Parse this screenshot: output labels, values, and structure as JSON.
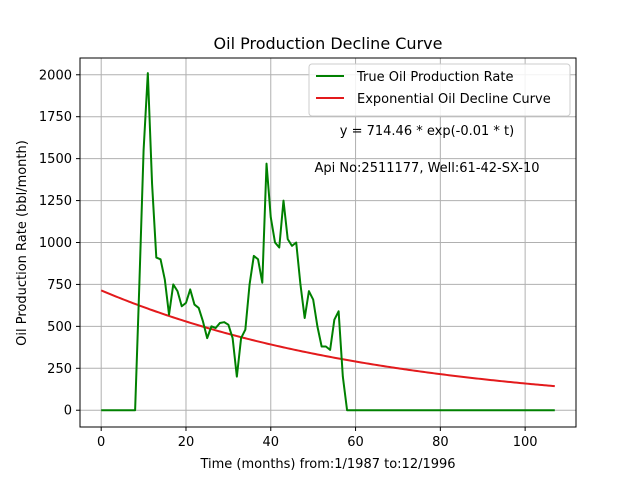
{
  "chart_data": {
    "type": "line",
    "title": "Oil Production Decline Curve",
    "xlabel": "Time (months) from:1/1987 to:12/1996",
    "ylabel": "Oil Production Rate (bbl/month)",
    "xlim": [
      -5,
      112
    ],
    "ylim": [
      -100,
      2100
    ],
    "xticks": [
      0,
      20,
      40,
      60,
      80,
      100
    ],
    "yticks": [
      0,
      250,
      500,
      750,
      1000,
      1250,
      1500,
      1750,
      2000
    ],
    "grid": true,
    "legend_position": "top-right",
    "annotations": [
      "y = 714.46 * exp(-0.01 * t)",
      "Api No:2511177, Well:61-42-SX-10"
    ],
    "series": [
      {
        "name": "True Oil Production Rate",
        "color": "#008000",
        "x": [
          0,
          1,
          2,
          3,
          4,
          5,
          6,
          7,
          8,
          9,
          10,
          11,
          12,
          13,
          14,
          15,
          16,
          17,
          18,
          19,
          20,
          21,
          22,
          23,
          24,
          25,
          26,
          27,
          28,
          29,
          30,
          31,
          32,
          33,
          34,
          35,
          36,
          37,
          38,
          39,
          40,
          41,
          42,
          43,
          44,
          45,
          46,
          47,
          48,
          49,
          50,
          51,
          52,
          53,
          54,
          55,
          56,
          57,
          58,
          59,
          60,
          61,
          62,
          63,
          64,
          65,
          66,
          67,
          68,
          69,
          70,
          71,
          72,
          73,
          74,
          75,
          76,
          77,
          78,
          79,
          80,
          81,
          82,
          83,
          84,
          85,
          86,
          87,
          88,
          89,
          90,
          91,
          92,
          93,
          94,
          95,
          96,
          97,
          98,
          99,
          100,
          101,
          102,
          103,
          104,
          105,
          106,
          107
        ],
        "y": [
          0,
          0,
          0,
          0,
          0,
          0,
          0,
          0,
          0,
          750,
          1550,
          2010,
          1350,
          910,
          900,
          780,
          570,
          750,
          710,
          620,
          640,
          720,
          630,
          610,
          530,
          430,
          500,
          490,
          520,
          525,
          510,
          430,
          200,
          430,
          480,
          750,
          920,
          900,
          760,
          1470,
          1150,
          1000,
          970,
          1250,
          1020,
          980,
          1000,
          750,
          550,
          710,
          660,
          500,
          380,
          380,
          360,
          540,
          590,
          200,
          0,
          0,
          0,
          0,
          0,
          0,
          0,
          0,
          0,
          0,
          0,
          0,
          0,
          0,
          0,
          0,
          0,
          0,
          0,
          0,
          0,
          0,
          0,
          0,
          0,
          0,
          0,
          0,
          0,
          0,
          0,
          0,
          0,
          0,
          0,
          0,
          0,
          0,
          0,
          0,
          0,
          0,
          0,
          0,
          0,
          0,
          0,
          0,
          0,
          0
        ]
      },
      {
        "name": "Exponential Oil Decline Curve",
        "color": "#e31a1c",
        "model": {
          "a": 714.46,
          "b": 0.015
        },
        "x_range": [
          0,
          107
        ]
      }
    ]
  }
}
